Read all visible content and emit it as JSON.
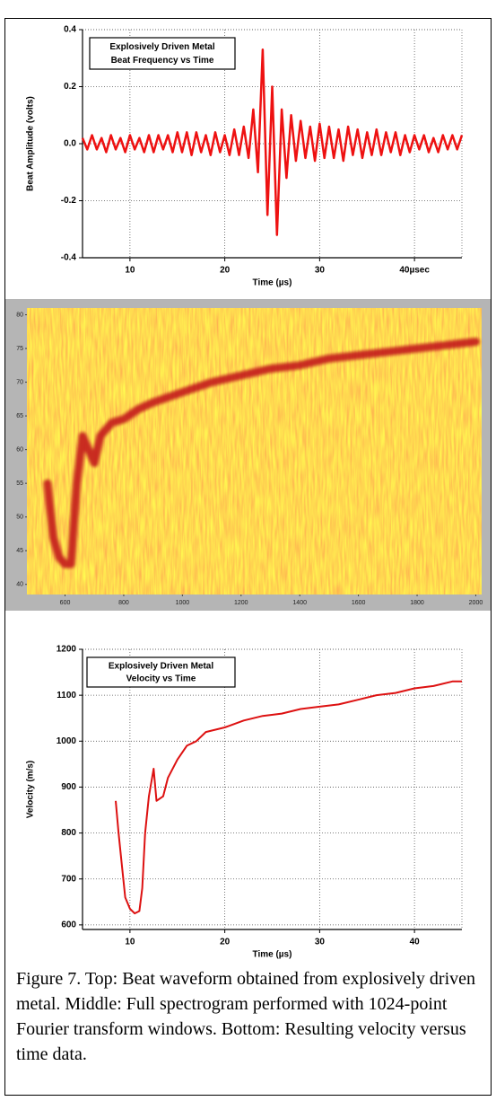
{
  "chart_data": [
    {
      "type": "line",
      "title": "Explosively Driven Metal",
      "subtitle": "Beat Frequency vs Time",
      "x_label": "Time (µs)",
      "y_label": "Beat Amplitude (volts)",
      "color": "#ee1111",
      "grid": true,
      "xlim": [
        5,
        45
      ],
      "ylim": [
        -0.4,
        0.4
      ],
      "xticks": [
        10,
        20,
        30,
        {
          "value": 40,
          "label": "40µsec"
        }
      ],
      "yticks": [
        -0.4,
        -0.2,
        {
          "value": 0,
          "label": "0.0"
        },
        0.2,
        0.4
      ],
      "x": [
        5,
        5.5,
        6,
        6.5,
        7,
        7.5,
        8,
        8.5,
        9,
        9.5,
        10,
        10.5,
        11,
        11.5,
        12,
        12.5,
        13,
        13.5,
        14,
        14.5,
        15,
        15.5,
        16,
        16.5,
        17,
        17.5,
        18,
        18.5,
        19,
        19.5,
        20,
        20.5,
        21,
        21.5,
        22,
        22.5,
        23,
        23.5,
        24,
        24.5,
        25,
        25.5,
        26,
        26.5,
        27,
        27.5,
        28,
        28.5,
        29,
        29.5,
        30,
        30.5,
        31,
        31.5,
        32,
        32.5,
        33,
        33.5,
        34,
        34.5,
        35,
        35.5,
        36,
        36.5,
        37,
        37.5,
        38,
        38.5,
        39,
        39.5,
        40,
        40.5,
        41,
        41.5,
        42,
        42.5,
        43,
        43.5,
        44,
        44.5,
        45
      ],
      "values": [
        0.02,
        -0.02,
        0.03,
        -0.02,
        0.02,
        -0.03,
        0.03,
        -0.02,
        0.02,
        -0.03,
        0.03,
        -0.02,
        0.02,
        -0.03,
        0.03,
        -0.03,
        0.03,
        -0.02,
        0.03,
        -0.03,
        0.04,
        -0.03,
        0.04,
        -0.04,
        0.04,
        -0.03,
        0.03,
        -0.04,
        0.04,
        -0.03,
        0.03,
        -0.04,
        0.05,
        -0.04,
        0.06,
        -0.05,
        0.12,
        -0.1,
        0.33,
        -0.25,
        0.2,
        -0.32,
        0.12,
        -0.12,
        0.1,
        -0.06,
        0.08,
        -0.05,
        0.06,
        -0.06,
        0.07,
        -0.05,
        0.06,
        -0.05,
        0.05,
        -0.06,
        0.06,
        -0.04,
        0.05,
        -0.05,
        0.04,
        -0.04,
        0.05,
        -0.04,
        0.04,
        -0.03,
        0.04,
        -0.04,
        0.03,
        -0.03,
        0.03,
        -0.02,
        0.03,
        -0.03,
        0.02,
        -0.03,
        0.03,
        -0.02,
        0.03,
        -0.02,
        0.03
      ]
    },
    {
      "type": "spectrogram",
      "color": "#c0121a",
      "xlim": [
        470,
        2020
      ],
      "ylim": [
        38.5,
        81
      ],
      "xticks": [
        600,
        800,
        1000,
        1200,
        1400,
        1600,
        1800,
        2000
      ],
      "yticks": [
        40,
        45,
        50,
        55,
        60,
        65,
        70,
        75,
        80
      ],
      "x": [
        540,
        560,
        580,
        600,
        620,
        640,
        660,
        680,
        700,
        720,
        760,
        800,
        850,
        900,
        1000,
        1100,
        1200,
        1300,
        1400,
        1500,
        1600,
        1700,
        1800,
        1900,
        2000
      ],
      "values": [
        55,
        47,
        44,
        43,
        43,
        55,
        62,
        60,
        58,
        62,
        64,
        64.5,
        66,
        67,
        68.5,
        70,
        71,
        72,
        72.5,
        73.5,
        74,
        74.5,
        75,
        75.5,
        76
      ]
    },
    {
      "type": "line",
      "title": "Explosively Driven Metal",
      "subtitle": "Velocity vs Time",
      "x_label": "Time (µs)",
      "y_label": "Velocity (m/s)",
      "color": "#dd1111",
      "grid": true,
      "xlim": [
        5,
        45
      ],
      "ylim": [
        590,
        1200
      ],
      "xticks": [
        10,
        20,
        30,
        40
      ],
      "yticks": [
        600,
        700,
        800,
        900,
        1000,
        1100,
        1200
      ],
      "x": [
        8.5,
        8.8,
        9.2,
        9.5,
        10,
        10.5,
        11,
        11.3,
        11.6,
        12,
        12.5,
        12.8,
        13.5,
        14,
        15,
        16,
        17,
        18,
        20,
        22,
        24,
        26,
        28,
        30,
        32,
        34,
        36,
        38,
        40,
        42,
        44,
        45
      ],
      "values": [
        870,
        800,
        720,
        660,
        635,
        625,
        630,
        680,
        800,
        880,
        940,
        870,
        880,
        920,
        960,
        990,
        1000,
        1020,
        1030,
        1045,
        1055,
        1060,
        1070,
        1075,
        1080,
        1090,
        1100,
        1105,
        1115,
        1120,
        1130,
        1130
      ]
    }
  ],
  "caption": "Figure 7. Top: Beat waveform obtained from explosively driven metal. Middle: Full spectrogram performed with 1024-point Fourier transform windows. Bottom: Resulting velocity versus time data."
}
